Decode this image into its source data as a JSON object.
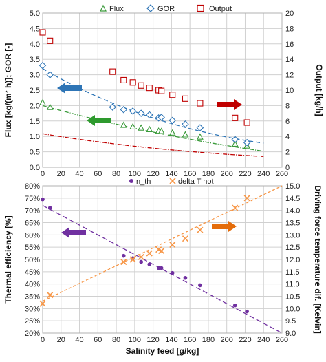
{
  "chart_data": [
    {
      "type": "scatter",
      "legend_position": "top",
      "grid": true,
      "x_ticks": [
        "0",
        "20",
        "40",
        "60",
        "80",
        "100",
        "120",
        "140",
        "160",
        "180",
        "200",
        "220",
        "240",
        "260"
      ],
      "xlim": [
        0,
        260
      ],
      "ylabel_left": "Flux [kg/(m² h)]; GOR [-]",
      "ylabel_right": "Output [kg/h]",
      "y_left_ticks": [
        "0.0",
        "0.5",
        "1.0",
        "1.5",
        "2.0",
        "2.5",
        "3.0",
        "3.5",
        "4.0",
        "4.5",
        "5.0"
      ],
      "y_right_ticks": [
        "0",
        "2",
        "4",
        "6",
        "8",
        "10",
        "12",
        "14",
        "16",
        "18",
        "20"
      ],
      "ylim_left": [
        0,
        5
      ],
      "ylim_right": [
        0,
        20
      ],
      "series": [
        {
          "name": "Flux",
          "axis": "left",
          "marker": "triangle",
          "color": "#3a9a3a",
          "x": [
            0,
            8,
            88,
            98,
            107,
            116,
            126,
            129,
            141,
            155,
            171,
            209,
            222
          ],
          "y": [
            2.1,
            1.95,
            1.37,
            1.32,
            1.28,
            1.23,
            1.18,
            1.17,
            1.12,
            1.06,
            0.99,
            0.76,
            0.7
          ]
        },
        {
          "name": "GOR",
          "axis": "left",
          "marker": "diamond",
          "color": "#2e75b6",
          "x": [
            0,
            8,
            76,
            88,
            98,
            107,
            116,
            126,
            129,
            141,
            155,
            171,
            209,
            222
          ],
          "y": [
            3.3,
            3.0,
            1.95,
            1.87,
            1.82,
            1.75,
            1.7,
            1.6,
            1.62,
            1.52,
            1.4,
            1.28,
            0.9,
            0.8
          ]
        },
        {
          "name": "Output",
          "axis": "right",
          "marker": "square",
          "color": "#c00000",
          "x": [
            0,
            8,
            76,
            88,
            98,
            107,
            116,
            126,
            129,
            141,
            155,
            171,
            209,
            222
          ],
          "y": [
            17.5,
            16.4,
            12.4,
            11.3,
            11.0,
            10.6,
            10.3,
            10.0,
            9.9,
            9.4,
            8.9,
            8.3,
            6.4,
            5.8
          ]
        }
      ],
      "arrows": [
        {
          "color": "#2e75b6",
          "direction": "left"
        },
        {
          "color": "#2e9a2e",
          "direction": "left"
        },
        {
          "color": "#c00000",
          "direction": "right"
        }
      ]
    },
    {
      "type": "scatter",
      "legend_position": "top",
      "grid": true,
      "xlabel": "Salinity feed [g/kg]",
      "x_ticks": [
        "0",
        "20",
        "40",
        "60",
        "80",
        "100",
        "120",
        "140",
        "160",
        "180",
        "200",
        "220",
        "240",
        "260"
      ],
      "xlim": [
        0,
        260
      ],
      "ylabel_left": "Thermal efficiency [%]",
      "ylabel_right": "Driving force temperature dif. [Kelvin]",
      "y_left_ticks": [
        "20%",
        "25%",
        "30%",
        "35%",
        "40%",
        "45%",
        "50%",
        "55%",
        "60%",
        "65%",
        "70%",
        "75%",
        "80%"
      ],
      "y_right_ticks": [
        "9.0",
        "9.5",
        "10.0",
        "10.5",
        "11.0",
        "11.5",
        "12.0",
        "12.5",
        "13.0",
        "13.5",
        "14.0",
        "14.5",
        "15.0"
      ],
      "ylim_left": [
        20,
        80
      ],
      "ylim_right": [
        9,
        15
      ],
      "series": [
        {
          "name": "n_th",
          "axis": "left",
          "marker": "circle",
          "color": "#7030a0",
          "x": [
            0,
            8,
            88,
            98,
            107,
            116,
            126,
            129,
            141,
            155,
            171,
            209,
            222
          ],
          "y": [
            74.5,
            71,
            51.5,
            50.5,
            49,
            48,
            46.5,
            46.5,
            44.5,
            42.5,
            39.5,
            31.3,
            28.8
          ]
        },
        {
          "name": "delta T hot",
          "axis": "right",
          "marker": "x",
          "color": "#f79646",
          "x": [
            0,
            8,
            88,
            98,
            107,
            116,
            126,
            129,
            141,
            155,
            171,
            209,
            222
          ],
          "y": [
            10.2,
            10.55,
            11.9,
            12.0,
            12.1,
            12.25,
            12.4,
            12.35,
            12.6,
            12.85,
            13.2,
            14.1,
            14.5
          ]
        }
      ],
      "arrows": [
        {
          "color": "#7030a0",
          "direction": "left"
        },
        {
          "color": "#e46c0a",
          "direction": "right"
        }
      ]
    }
  ]
}
